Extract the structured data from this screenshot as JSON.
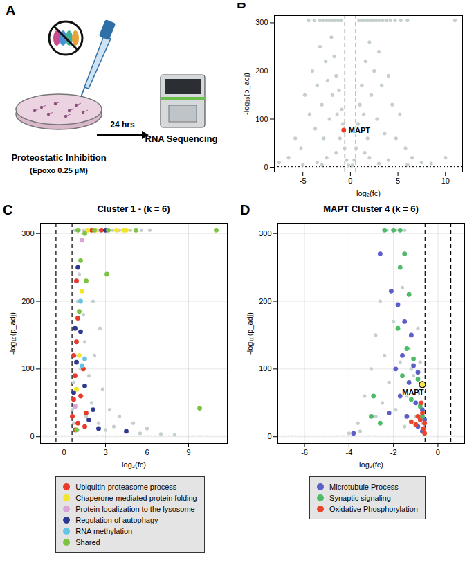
{
  "diagram": {
    "panel_label": "A",
    "treatment": "Proteostatic Inhibition",
    "dose": "(Epoxo 0.25 µM)",
    "time": "24 hrs",
    "readout": "RNA Sequencing"
  },
  "chart_data": [
    {
      "panel_label": "B",
      "type": "scatter",
      "x_label": "log₂(fc)",
      "y_label": "-log₁₀(p_adj)",
      "xlim": [
        -8,
        11.8
      ],
      "xticks": [
        -5,
        0,
        5,
        10
      ],
      "ylim": [
        -10,
        315
      ],
      "yticks": [
        0,
        100,
        200,
        300
      ],
      "grid": false,
      "vlines": [
        -0.58,
        0.58
      ],
      "hline": 1.3,
      "series": [
        {
          "color": "#c5d0ce",
          "x": [
            -4.4,
            -3.8,
            -3.2,
            -2.9,
            -2.5,
            -2.2,
            -1.9,
            -1.6,
            -1.3,
            -1.0,
            0.9,
            1.2,
            1.5,
            1.8,
            2.1,
            2.4,
            2.7,
            3.0,
            3.4,
            3.8,
            4.2,
            4.7,
            5.3,
            6.0,
            11.0,
            -6.5,
            -5.8,
            -5.2,
            -4.8,
            -4.3,
            -4.0,
            -3.7,
            -3.5,
            -3.2,
            -3.0,
            -2.8,
            -2.6,
            -2.4,
            -2.2,
            -2.0,
            -1.9,
            -1.7,
            -1.5,
            -1.4,
            -1.2,
            -1.1,
            -0.9,
            -0.8,
            -0.6,
            -0.4,
            -0.2,
            -1.5,
            -2.5,
            -3.5,
            -5.0,
            -7.5,
            -3.0,
            0.2,
            0.4,
            0.6,
            0.8,
            1.0,
            1.2,
            1.4,
            1.6,
            1.8,
            2.0,
            2.2,
            2.5,
            2.8,
            3.0,
            3.3,
            3.6,
            4.0,
            4.4,
            4.8,
            5.2,
            5.8,
            6.5,
            7.5,
            8.5,
            10.0,
            2.0,
            3.0,
            1.5,
            4.0,
            6.0
          ],
          "values": [
            305,
            305,
            305,
            305,
            305,
            305,
            305,
            305,
            305,
            305,
            305,
            305,
            305,
            305,
            305,
            305,
            305,
            305,
            305,
            305,
            305,
            305,
            305,
            305,
            305,
            20,
            60,
            40,
            150,
            110,
            200,
            80,
            170,
            250,
            130,
            60,
            220,
            180,
            100,
            270,
            150,
            230,
            190,
            110,
            160,
            60,
            120,
            90,
            40,
            15,
            4,
            30,
            20,
            10,
            5,
            10,
            5,
            4,
            15,
            40,
            90,
            130,
            170,
            110,
            220,
            60,
            260,
            150,
            200,
            100,
            240,
            170,
            70,
            190,
            130,
            60,
            110,
            40,
            20,
            10,
            8,
            20,
            20,
            8,
            30,
            15,
            5
          ]
        },
        {
          "label": "MAPT",
          "color": "#e8392a",
          "x": [
            -0.7
          ],
          "values": [
            77
          ]
        }
      ]
    },
    {
      "panel_label": "C",
      "type": "scatter",
      "title": "Cluster 1 - (k = 6)",
      "x_label": "log₂(fc)",
      "y_label": "-log₁₀(p_adj)",
      "xlim": [
        -1.7,
        11.8
      ],
      "xticks": [
        0,
        3,
        6,
        9
      ],
      "ylim": [
        -10,
        315
      ],
      "yticks": [
        0,
        100,
        200,
        300
      ],
      "grid": true,
      "legend": "bottom",
      "vlines": [
        -0.58,
        0.58
      ],
      "hline": 1.3,
      "series": [
        {
          "color": "#c5d0ce",
          "x": [
            0.8,
            1.1,
            1.4,
            1.9,
            2.5,
            2.9,
            3.5,
            4.0,
            4.8,
            5.6,
            6.2,
            0.6,
            0.7,
            0.8,
            0.9,
            1.0,
            1.1,
            1.2,
            1.3,
            1.5,
            1.6,
            1.8,
            2.0,
            2.2,
            2.5,
            2.8,
            3.0,
            3.3,
            3.6,
            4.0,
            4.5,
            5.0,
            5.5,
            6.0,
            7.0,
            8.0,
            1.4,
            2.1,
            2.6,
            0.7,
            1.0
          ],
          "values": [
            305,
            305,
            305,
            305,
            305,
            305,
            305,
            305,
            305,
            305,
            305,
            40,
            80,
            120,
            160,
            200,
            240,
            100,
            60,
            140,
            30,
            90,
            50,
            120,
            20,
            70,
            10,
            40,
            15,
            30,
            8,
            20,
            5,
            12,
            4,
            3,
            180,
            200,
            160,
            20,
            10
          ]
        },
        {
          "name": "Ubiquitin-proteasome process",
          "color": "#e8392a",
          "x": [
            0.6,
            0.7,
            0.8,
            0.9,
            1.0,
            0.7,
            1.2,
            1.0,
            0.8,
            1.4,
            1.6,
            2.0,
            2.7,
            0.9,
            1.5
          ],
          "values": [
            30,
            55,
            90,
            140,
            175,
            120,
            60,
            20,
            10,
            100,
            35,
            305,
            305,
            230,
            15
          ]
        },
        {
          "name": "Chaperone-mediated protein folding",
          "color": "#f2e52a",
          "x": [
            1.7,
            2.3,
            3.8,
            4.3,
            1.3,
            1.1,
            0.9,
            4.5
          ],
          "values": [
            305,
            305,
            305,
            305,
            215,
            120,
            70,
            305
          ]
        },
        {
          "name": "Protein localization to the lysosome",
          "color": "#d9a6d9",
          "x": [
            1.3,
            0.8
          ],
          "values": [
            290,
            45
          ]
        },
        {
          "name": "Regulation of autophagy",
          "color": "#2e3a8f",
          "x": [
            0.9,
            1.0,
            1.2,
            1.5,
            2.1,
            2.5,
            0.7,
            3.0,
            1.8,
            4.5,
            0.8
          ],
          "values": [
            110,
            250,
            155,
            75,
            40,
            12,
            65,
            305,
            25,
            8,
            160
          ]
        },
        {
          "name": "RNA methylation",
          "color": "#66c3e8",
          "x": [
            1.3,
            1.5,
            1.2
          ],
          "values": [
            105,
            115,
            200
          ]
        },
        {
          "name": "Shared",
          "color": "#7cc243",
          "x": [
            1.0,
            1.2,
            1.5,
            2.2,
            3.2,
            5.2,
            3.1,
            11.0,
            9.8,
            1.1,
            1.6,
            0.9
          ],
          "values": [
            305,
            260,
            300,
            305,
            305,
            305,
            240,
            305,
            42,
            185,
            230,
            10
          ]
        }
      ]
    },
    {
      "panel_label": "D",
      "type": "scatter",
      "title": "MAPT Cluster 4 (k = 6)",
      "x_label": "log₂(fc)",
      "y_label": "-log₁₀(p_adj)",
      "xlim": [
        -7.2,
        1.2
      ],
      "xticks": [
        -6,
        -4,
        -2,
        0
      ],
      "ylim": [
        -10,
        315
      ],
      "yticks": [
        0,
        100,
        200,
        300
      ],
      "grid": true,
      "legend": "bottom",
      "vlines": [
        -0.58,
        0.58
      ],
      "hline": 1.3,
      "series": [
        {
          "color": "#c5d0ce",
          "x": [
            -4.0,
            -3.6,
            -3.3,
            -3.0,
            -2.8,
            -2.6,
            -2.4,
            -2.2,
            -2.0,
            -1.9,
            -1.7,
            -1.6,
            -1.4,
            -1.3,
            -1.1,
            -1.0,
            -0.9,
            -0.8,
            -0.7,
            -0.6,
            -2.8,
            -3.5,
            -1.5,
            -2.3,
            -1.9,
            -1.5,
            -1.2,
            -0.8,
            -2.5
          ],
          "values": [
            5,
            20,
            60,
            100,
            150,
            200,
            120,
            80,
            170,
            40,
            110,
            220,
            60,
            130,
            90,
            30,
            160,
            50,
            20,
            10,
            30,
            8,
            15,
            305,
            305,
            305,
            100,
            110,
            50
          ]
        },
        {
          "name": "Microtubule Process",
          "color": "#5b5fc7",
          "x": [
            -2.6,
            -2.1,
            -1.8,
            -1.5,
            -1.2,
            -1.6,
            -1.1,
            -0.9,
            -1.3,
            -0.8,
            -1.0,
            -0.7,
            -1.9,
            -0.6,
            -1.4,
            -0.9,
            -3.8,
            -2.2,
            -0.7,
            -1.7
          ],
          "values": [
            270,
            215,
            195,
            170,
            150,
            120,
            105,
            95,
            80,
            65,
            50,
            40,
            100,
            25,
            30,
            15,
            5,
            35,
            8,
            60
          ]
        },
        {
          "name": "Synaptic signaling",
          "color": "#4dbb6a",
          "x": [
            -2.4,
            -2.0,
            -1.7,
            -1.5,
            -1.7,
            -1.3,
            -1.8,
            -1.4,
            -1.1,
            -0.9,
            -1.6,
            -2.9,
            -3.0,
            -1.2,
            -0.8,
            -2.6,
            -0.7
          ],
          "values": [
            305,
            305,
            305,
            270,
            250,
            210,
            160,
            130,
            115,
            85,
            90,
            60,
            30,
            55,
            45,
            20,
            30
          ]
        },
        {
          "name": "Oxidative Phosphorylation",
          "color": "#e8452a",
          "x": [
            -0.7,
            -0.6,
            -0.8,
            -1.0,
            -0.65,
            -0.9,
            -1.2,
            -0.75,
            -0.6
          ],
          "values": [
            35,
            20,
            25,
            18,
            12,
            30,
            22,
            50,
            5
          ]
        },
        {
          "label": "MAPT",
          "color": "#f5e94a",
          "marker": "ring",
          "x": [
            -0.7
          ],
          "values": [
            77
          ]
        }
      ]
    }
  ]
}
